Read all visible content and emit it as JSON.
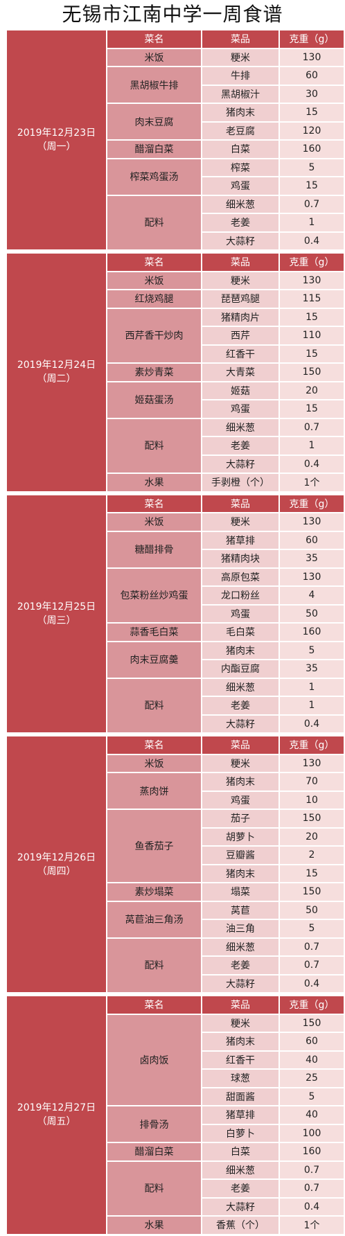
{
  "title": "无锡市江南中学一周食谱",
  "days": [
    {
      "date": "2019年12月23日",
      "weekday": "（周一）",
      "header": [
        "菜名",
        "菜品",
        "克重（g）"
      ],
      "dishes": [
        {
          "name": "米饭",
          "items": [
            [
              "粳米",
              "130"
            ]
          ]
        },
        {
          "name": "黑胡椒牛排",
          "items": [
            [
              "牛排",
              "60"
            ],
            [
              "黑胡椒汁",
              "30"
            ]
          ]
        },
        {
          "name": "肉末豆腐",
          "items": [
            [
              "猪肉末",
              "15"
            ],
            [
              "老豆腐",
              "120"
            ]
          ]
        },
        {
          "name": "醋溜白菜",
          "items": [
            [
              "白菜",
              "160"
            ]
          ]
        },
        {
          "name": "榨菜鸡蛋汤",
          "items": [
            [
              "榨菜",
              "5"
            ],
            [
              "鸡蛋",
              "15"
            ]
          ]
        },
        {
          "name": "配料",
          "items": [
            [
              "细米葱",
              "0.7"
            ],
            [
              "老姜",
              "1"
            ],
            [
              "大蒜籽",
              "0.4"
            ]
          ]
        }
      ]
    },
    {
      "date": "2019年12月24日",
      "weekday": "（周二）",
      "header": [
        "菜名",
        "菜品",
        "克重（g）"
      ],
      "dishes": [
        {
          "name": "米饭",
          "items": [
            [
              "粳米",
              "130"
            ]
          ]
        },
        {
          "name": "红烧鸡腿",
          "items": [
            [
              "琵琶鸡腿",
              "115"
            ]
          ]
        },
        {
          "name": "西芹香干炒肉",
          "items": [
            [
              "猪精肉片",
              "15"
            ],
            [
              "西芹",
              "110"
            ],
            [
              "红香干",
              "15"
            ]
          ]
        },
        {
          "name": "素炒青菜",
          "items": [
            [
              "大青菜",
              "150"
            ]
          ]
        },
        {
          "name": "姬菇蛋汤",
          "items": [
            [
              "姬菇",
              "20"
            ],
            [
              "鸡蛋",
              "15"
            ]
          ]
        },
        {
          "name": "配料",
          "items": [
            [
              "细米葱",
              "0.7"
            ],
            [
              "老姜",
              "1"
            ],
            [
              "大蒜籽",
              "0.4"
            ]
          ]
        },
        {
          "name": "水果",
          "items": [
            [
              "手剥橙（个）",
              "1个"
            ]
          ]
        }
      ]
    },
    {
      "date": "2019年12月25日",
      "weekday": "（周三）",
      "header": [
        "菜名",
        "菜品",
        "克重（g）"
      ],
      "dishes": [
        {
          "name": "米饭",
          "items": [
            [
              "粳米",
              "130"
            ]
          ]
        },
        {
          "name": "糖醋排骨",
          "items": [
            [
              "猪草排",
              "60"
            ],
            [
              "猪精肉块",
              "35"
            ]
          ]
        },
        {
          "name": "包菜粉丝炒鸡蛋",
          "items": [
            [
              "高原包菜",
              "130"
            ],
            [
              "龙口粉丝",
              "4"
            ],
            [
              "鸡蛋",
              "50"
            ]
          ]
        },
        {
          "name": "蒜香毛白菜",
          "items": [
            [
              "毛白菜",
              "160"
            ]
          ]
        },
        {
          "name": "肉末豆腐羹",
          "items": [
            [
              "猪肉末",
              "5"
            ],
            [
              "内酯豆腐",
              "35"
            ]
          ]
        },
        {
          "name": "配料",
          "items": [
            [
              "细米葱",
              "1"
            ],
            [
              "老姜",
              "1"
            ],
            [
              "大蒜籽",
              "0.4"
            ]
          ]
        }
      ]
    },
    {
      "date": "2019年12月26日",
      "weekday": "（周四）",
      "header": [
        "菜名",
        "菜品",
        "克重（g）"
      ],
      "dishes": [
        {
          "name": "米饭",
          "items": [
            [
              "粳米",
              "130"
            ]
          ]
        },
        {
          "name": "蒸肉饼",
          "items": [
            [
              "猪肉末",
              "70"
            ],
            [
              "鸡蛋",
              "10"
            ]
          ]
        },
        {
          "name": "鱼香茄子",
          "items": [
            [
              "茄子",
              "150"
            ],
            [
              "胡萝卜",
              "20"
            ],
            [
              "豆瓣酱",
              "2"
            ],
            [
              "猪肉末",
              "15"
            ]
          ]
        },
        {
          "name": "素炒塌菜",
          "items": [
            [
              "塌菜",
              "150"
            ]
          ]
        },
        {
          "name": "莴苣油三角汤",
          "items": [
            [
              "莴苣",
              "50"
            ],
            [
              "油三角",
              "5"
            ]
          ]
        },
        {
          "name": "配料",
          "items": [
            [
              "细米葱",
              "0.7"
            ],
            [
              "老姜",
              "0.7"
            ],
            [
              "大蒜籽",
              "0.4"
            ]
          ]
        }
      ]
    },
    {
      "date": "2019年12月27日",
      "weekday": "（周五）",
      "header": [
        "菜名",
        "菜品",
        "克重（g）"
      ],
      "dishes": [
        {
          "name": "卤肉饭",
          "items": [
            [
              "粳米",
              "150"
            ],
            [
              "猪肉末",
              "60"
            ],
            [
              "红香干",
              "40"
            ],
            [
              "球葱",
              "25"
            ],
            [
              "甜面酱",
              "5"
            ]
          ]
        },
        {
          "name": "排骨汤",
          "items": [
            [
              "猪草排",
              "40"
            ],
            [
              "白萝卜",
              "100"
            ]
          ]
        },
        {
          "name": "醋溜白菜",
          "items": [
            [
              "白菜",
              "160"
            ]
          ]
        },
        {
          "name": "配料",
          "items": [
            [
              "细米葱",
              "0.7"
            ],
            [
              "老姜",
              "0.7"
            ],
            [
              "大蒜籽",
              "0.4"
            ]
          ]
        },
        {
          "name": "水果",
          "items": [
            [
              "香蕉（个）",
              "1个"
            ]
          ]
        }
      ]
    }
  ]
}
